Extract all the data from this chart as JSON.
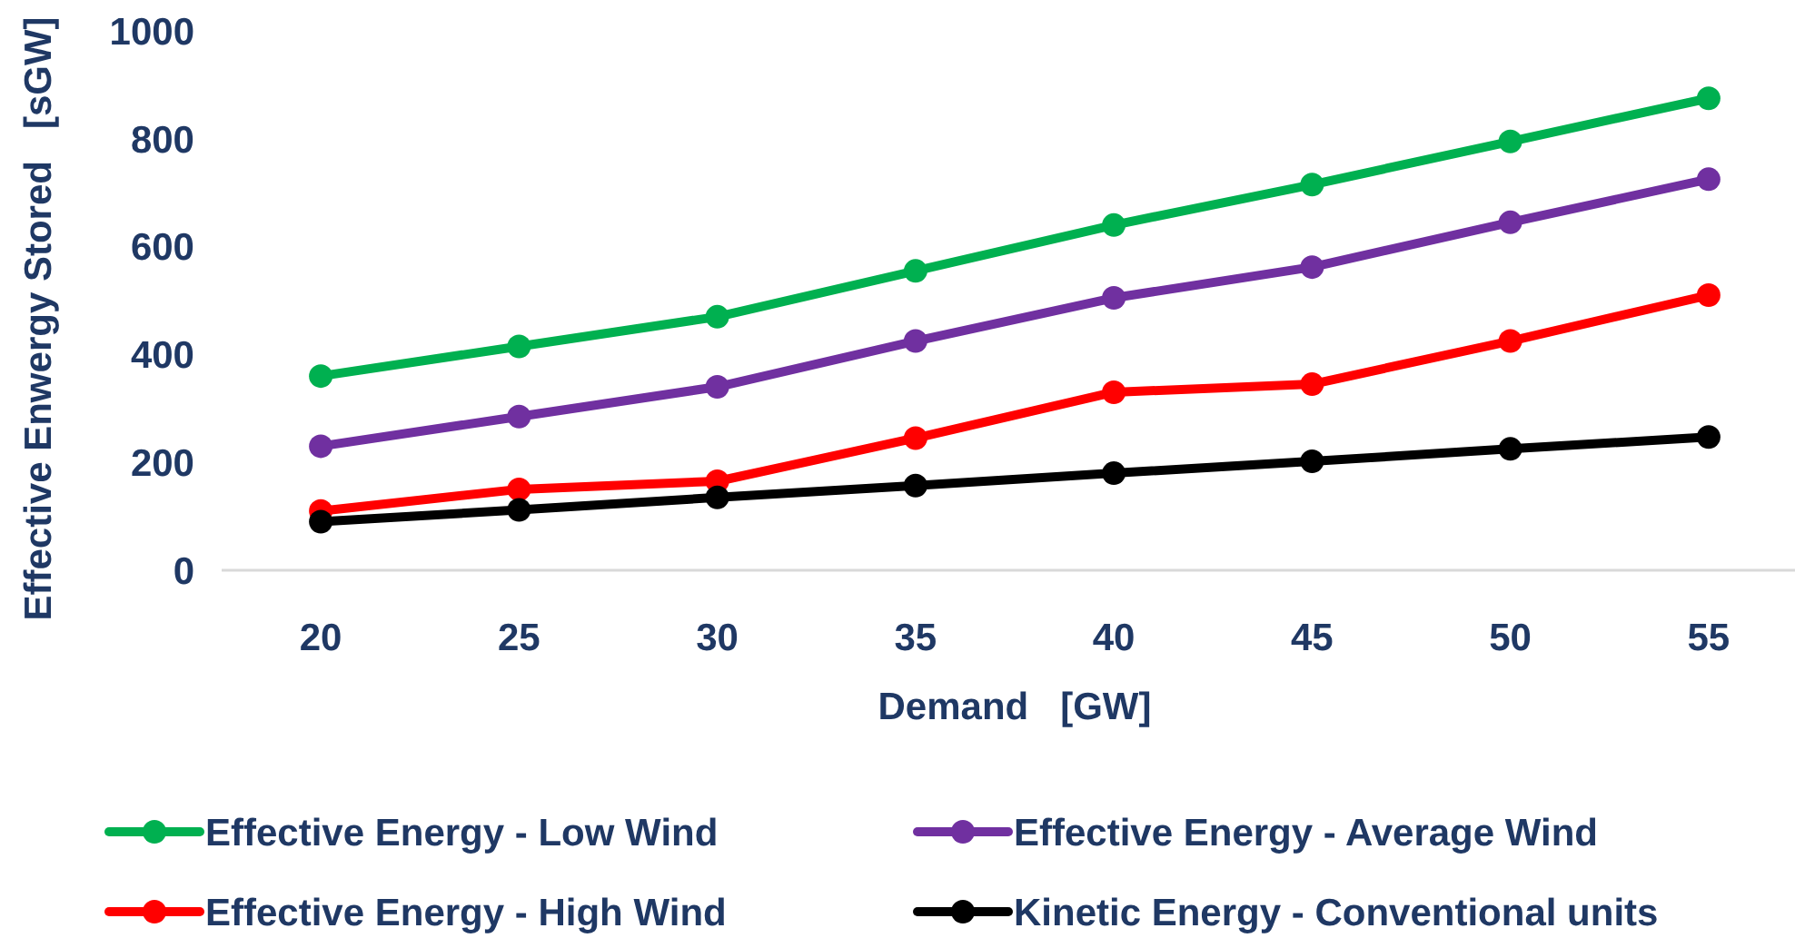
{
  "chart_data": {
    "type": "line",
    "xlabel": "Demand   [GW]",
    "ylabel": "Effective Enwergy Stored   [sGW]",
    "categories": [
      "20",
      "25",
      "30",
      "35",
      "40",
      "45",
      "50",
      "55"
    ],
    "ylim": [
      0,
      1000
    ],
    "yticks": [
      0,
      200,
      400,
      600,
      800,
      1000
    ],
    "grid": false,
    "legend": "bottom",
    "marker": "circle",
    "line_style": "solid",
    "series": [
      {
        "name": "Effective Energy - Low Wind",
        "color": "#00b050",
        "values": [
          360,
          415,
          470,
          555,
          640,
          715,
          795,
          875
        ]
      },
      {
        "name": "Effective Energy - Average Wind",
        "color": "#7030a0",
        "values": [
          230,
          285,
          340,
          425,
          505,
          562,
          645,
          725
        ]
      },
      {
        "name": "Effective Energy - High Wind",
        "color": "#ff0000",
        "values": [
          110,
          150,
          165,
          245,
          330,
          345,
          425,
          510
        ]
      },
      {
        "name": "Kinetic Energy - Conventional units",
        "color": "#000000",
        "values": [
          90,
          112,
          135,
          157,
          180,
          202,
          225,
          247
        ]
      }
    ]
  }
}
